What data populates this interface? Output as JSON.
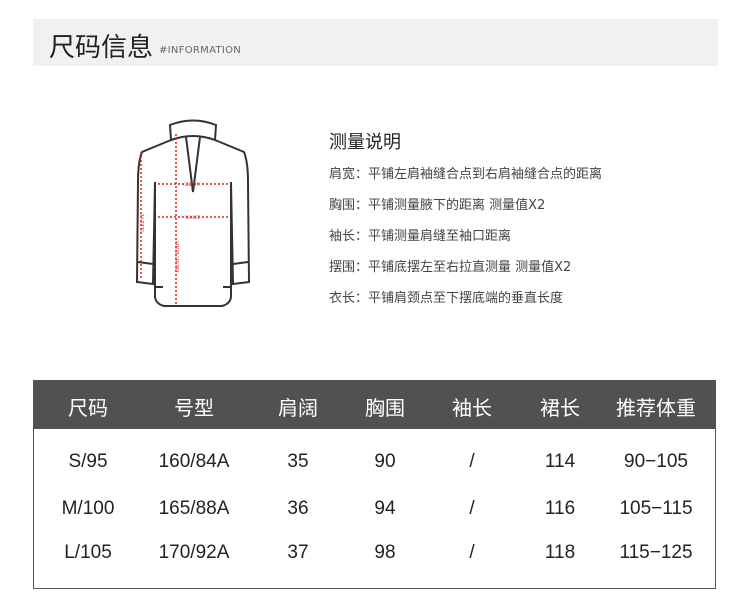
{
  "header": {
    "title": "尺码信息",
    "subtitle": "#INFORMATION"
  },
  "diagram": {
    "labels": [
      "CHEST",
      "WAIST",
      "SLEEVE",
      "FRONT BODY"
    ],
    "accent": "#e02020"
  },
  "notes": {
    "title": "测量说明",
    "lines": [
      "肩宽：平铺左肩袖缝合点到右肩袖缝合点的距离",
      "胸围：平铺测量腋下的距离 测量值X2",
      "袖长：平铺测量肩缝至袖口距离",
      "摆围：平铺底摆左至右拉直测量 测量值X2",
      "衣长：平铺肩颈点至下摆底端的垂直长度"
    ]
  },
  "table": {
    "headers": [
      "尺码",
      "号型",
      "肩阔",
      "胸围",
      "袖长",
      "裙长",
      "推荐体重"
    ],
    "rows": [
      [
        "S/95",
        "160/84A",
        "35",
        "90",
        "/",
        "114",
        "90−105"
      ],
      [
        "M/100",
        "165/88A",
        "36",
        "94",
        "/",
        "116",
        "105−115"
      ],
      [
        "L/105",
        "170/92A",
        "37",
        "98",
        "/",
        "118",
        "115−125"
      ]
    ],
    "header_bg": "#535150"
  }
}
